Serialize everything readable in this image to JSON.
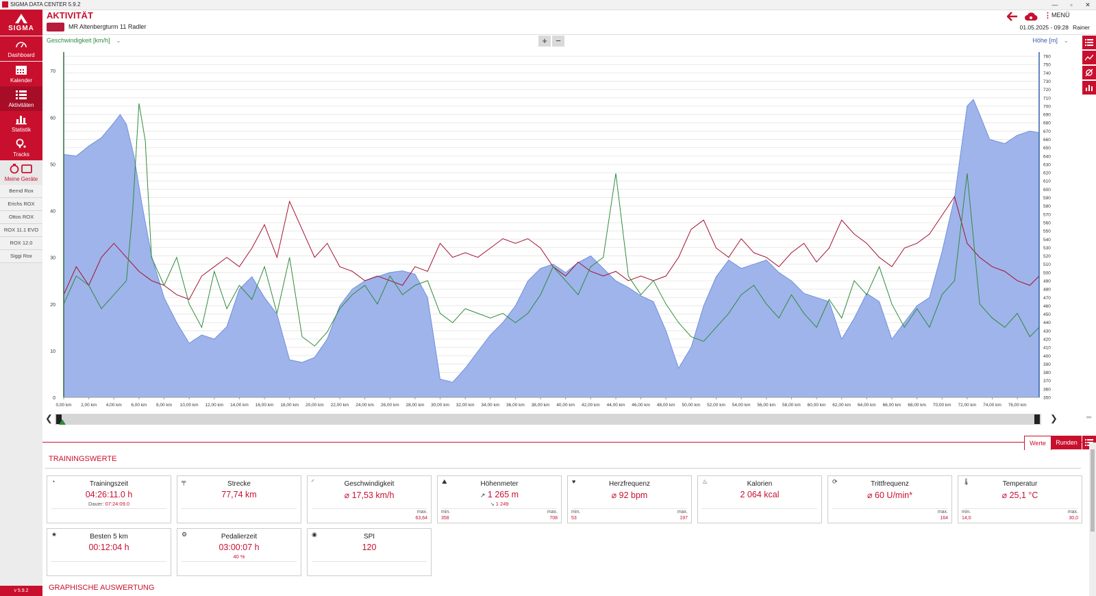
{
  "window": {
    "title": "SIGMA DATA CENTER 5.9.2"
  },
  "sidebar": {
    "logo": "SIGMA",
    "items": [
      {
        "label": "Dashboard",
        "icon": "speedometer-icon"
      },
      {
        "label": "Kalender",
        "icon": "calendar-icon"
      },
      {
        "label": "Aktivitäten",
        "icon": "list-icon"
      },
      {
        "label": "Statistik",
        "icon": "bar-chart-icon"
      },
      {
        "label": "Tracks",
        "icon": "map-pin-icon"
      },
      {
        "label": "Meine Geräte",
        "icon": "devices-icon"
      }
    ],
    "devices": [
      "Bernd Rox",
      "Erichs ROX",
      "Ottos ROX",
      "ROX 11.1 EVO",
      "ROX 12.0",
      "Siggi Rox"
    ],
    "version": "v 5.9.2"
  },
  "header": {
    "title": "AKTIVITÄT",
    "activity_name": "MR Altenbergturm 11 Radler",
    "menu_label": "MENÜ",
    "date": "01.05.2025",
    "time": "09:28",
    "user": "Rainer"
  },
  "colors": {
    "accent": "#c8102e",
    "speed": "#2e8b3a",
    "altitude_fill": "#9fb4ea",
    "heart": "#a3102e"
  },
  "chart_data": {
    "type": "line",
    "left_axis_label": "Geschwindigkeit [km/h]",
    "right_axis_label": "Höhe [m]",
    "ylim_left": [
      0,
      74
    ],
    "ylim_right": [
      350,
      765
    ],
    "xlim": [
      0,
      77.74
    ],
    "yticks_left": [
      0,
      10,
      20,
      30,
      40,
      50,
      60,
      70
    ],
    "yticks_right": [
      350,
      360,
      370,
      380,
      390,
      400,
      410,
      420,
      430,
      440,
      450,
      460,
      470,
      480,
      490,
      500,
      510,
      520,
      530,
      540,
      550,
      560,
      570,
      580,
      590,
      600,
      610,
      620,
      630,
      640,
      650,
      660,
      670,
      680,
      690,
      700,
      710,
      720,
      730,
      740,
      750,
      760
    ],
    "xtick_labels": [
      "0,00 km",
      "2,00 km",
      "4,00 km",
      "6,00 km",
      "8,00 km",
      "10,00 km",
      "12,00 km",
      "14,00 km",
      "16,00 km",
      "18,00 km",
      "20,00 km",
      "22,00 km",
      "24,00 km",
      "26,00 km",
      "28,00 km",
      "30,00 km",
      "32,00 km",
      "34,00 km",
      "36,00 km",
      "38,00 km",
      "40,00 km",
      "42,00 km",
      "44,00 km",
      "46,00 km",
      "48,00 km",
      "50,00 km",
      "52,00 km",
      "54,00 km",
      "56,00 km",
      "58,00 km",
      "60,00 km",
      "62,00 km",
      "64,00 km",
      "66,00 km",
      "68,00 km",
      "70,00 km",
      "72,00 km",
      "74,00 km",
      "76,00 km"
    ],
    "altitude": [
      [
        0,
        642
      ],
      [
        1,
        640
      ],
      [
        2,
        652
      ],
      [
        3,
        662
      ],
      [
        4,
        680
      ],
      [
        4.5,
        690
      ],
      [
        5,
        678
      ],
      [
        5.6,
        640
      ],
      [
        6.2,
        585
      ],
      [
        7,
        520
      ],
      [
        8,
        470
      ],
      [
        9,
        440
      ],
      [
        10,
        415
      ],
      [
        11,
        425
      ],
      [
        12,
        420
      ],
      [
        13,
        435
      ],
      [
        14,
        480
      ],
      [
        15,
        495
      ],
      [
        16,
        470
      ],
      [
        17,
        450
      ],
      [
        18,
        395
      ],
      [
        19,
        392
      ],
      [
        20,
        398
      ],
      [
        21,
        420
      ],
      [
        22,
        460
      ],
      [
        23,
        480
      ],
      [
        24,
        490
      ],
      [
        25,
        495
      ],
      [
        26,
        500
      ],
      [
        27,
        502
      ],
      [
        28,
        498
      ],
      [
        29,
        470
      ],
      [
        30,
        372
      ],
      [
        31,
        368
      ],
      [
        32,
        385
      ],
      [
        33,
        405
      ],
      [
        34,
        425
      ],
      [
        35,
        440
      ],
      [
        36,
        460
      ],
      [
        37,
        490
      ],
      [
        38,
        505
      ],
      [
        39,
        510
      ],
      [
        40,
        500
      ],
      [
        41,
        512
      ],
      [
        42,
        520
      ],
      [
        43,
        505
      ],
      [
        44,
        490
      ],
      [
        45,
        482
      ],
      [
        46,
        472
      ],
      [
        47,
        465
      ],
      [
        48,
        430
      ],
      [
        49,
        385
      ],
      [
        50,
        410
      ],
      [
        51,
        460
      ],
      [
        52,
        495
      ],
      [
        53,
        515
      ],
      [
        54,
        505
      ],
      [
        55,
        510
      ],
      [
        56,
        515
      ],
      [
        57,
        500
      ],
      [
        58,
        490
      ],
      [
        59,
        475
      ],
      [
        60,
        470
      ],
      [
        61,
        465
      ],
      [
        62,
        420
      ],
      [
        63,
        445
      ],
      [
        64,
        475
      ],
      [
        65,
        465
      ],
      [
        66,
        420
      ],
      [
        67,
        440
      ],
      [
        68,
        460
      ],
      [
        69,
        470
      ],
      [
        70,
        525
      ],
      [
        71,
        590
      ],
      [
        72,
        700
      ],
      [
        72.5,
        708
      ],
      [
        73,
        690
      ],
      [
        73.8,
        660
      ],
      [
        75,
        655
      ],
      [
        76,
        665
      ],
      [
        77,
        670
      ],
      [
        77.74,
        668
      ]
    ],
    "speed": [
      [
        0,
        20
      ],
      [
        1,
        26
      ],
      [
        2,
        24
      ],
      [
        3,
        19
      ],
      [
        4,
        22
      ],
      [
        5,
        25
      ],
      [
        5.5,
        40
      ],
      [
        6,
        63
      ],
      [
        6.5,
        55
      ],
      [
        7,
        30
      ],
      [
        8,
        24
      ],
      [
        9,
        30
      ],
      [
        10,
        20
      ],
      [
        11,
        15
      ],
      [
        12,
        27
      ],
      [
        13,
        19
      ],
      [
        14,
        24
      ],
      [
        15,
        21
      ],
      [
        16,
        28
      ],
      [
        17,
        18
      ],
      [
        18,
        30
      ],
      [
        19,
        13
      ],
      [
        20,
        11
      ],
      [
        21,
        14
      ],
      [
        22,
        19
      ],
      [
        23,
        22
      ],
      [
        24,
        24
      ],
      [
        25,
        20
      ],
      [
        26,
        26
      ],
      [
        27,
        22
      ],
      [
        28,
        24
      ],
      [
        29,
        25
      ],
      [
        30,
        18
      ],
      [
        31,
        16
      ],
      [
        32,
        19
      ],
      [
        33,
        18
      ],
      [
        34,
        17
      ],
      [
        35,
        18
      ],
      [
        36,
        16
      ],
      [
        37,
        18
      ],
      [
        38,
        22
      ],
      [
        39,
        28
      ],
      [
        40,
        25
      ],
      [
        41,
        22
      ],
      [
        42,
        28
      ],
      [
        43,
        30
      ],
      [
        44,
        48
      ],
      [
        45,
        26
      ],
      [
        46,
        22
      ],
      [
        47,
        25
      ],
      [
        48,
        20
      ],
      [
        49,
        16
      ],
      [
        50,
        13
      ],
      [
        51,
        12
      ],
      [
        52,
        15
      ],
      [
        53,
        18
      ],
      [
        54,
        22
      ],
      [
        55,
        24
      ],
      [
        56,
        20
      ],
      [
        57,
        17
      ],
      [
        58,
        22
      ],
      [
        59,
        18
      ],
      [
        60,
        15
      ],
      [
        61,
        21
      ],
      [
        62,
        17
      ],
      [
        63,
        25
      ],
      [
        64,
        22
      ],
      [
        65,
        28
      ],
      [
        66,
        20
      ],
      [
        67,
        15
      ],
      [
        68,
        19
      ],
      [
        69,
        15
      ],
      [
        70,
        22
      ],
      [
        71,
        25
      ],
      [
        72,
        48
      ],
      [
        73,
        20
      ],
      [
        74,
        17
      ],
      [
        75,
        15
      ],
      [
        76,
        18
      ],
      [
        77,
        13
      ],
      [
        77.74,
        15
      ]
    ],
    "heart_rate": [
      [
        0,
        22
      ],
      [
        1,
        28
      ],
      [
        2,
        24
      ],
      [
        3,
        30
      ],
      [
        4,
        33
      ],
      [
        5,
        30
      ],
      [
        6,
        27
      ],
      [
        7,
        25
      ],
      [
        8,
        24
      ],
      [
        9,
        22
      ],
      [
        10,
        21
      ],
      [
        11,
        26
      ],
      [
        12,
        28
      ],
      [
        13,
        30
      ],
      [
        14,
        28
      ],
      [
        15,
        32
      ],
      [
        16,
        37
      ],
      [
        17,
        30
      ],
      [
        18,
        42
      ],
      [
        19,
        36
      ],
      [
        20,
        30
      ],
      [
        21,
        33
      ],
      [
        22,
        28
      ],
      [
        23,
        27
      ],
      [
        24,
        25
      ],
      [
        25,
        26
      ],
      [
        26,
        25
      ],
      [
        27,
        24
      ],
      [
        28,
        28
      ],
      [
        29,
        27
      ],
      [
        30,
        33
      ],
      [
        31,
        30
      ],
      [
        32,
        31
      ],
      [
        33,
        30
      ],
      [
        34,
        32
      ],
      [
        35,
        34
      ],
      [
        36,
        33
      ],
      [
        37,
        34
      ],
      [
        38,
        32
      ],
      [
        39,
        28
      ],
      [
        40,
        26
      ],
      [
        41,
        29
      ],
      [
        42,
        27
      ],
      [
        43,
        26
      ],
      [
        44,
        27
      ],
      [
        45,
        25
      ],
      [
        46,
        26
      ],
      [
        47,
        25
      ],
      [
        48,
        26
      ],
      [
        49,
        30
      ],
      [
        50,
        36
      ],
      [
        51,
        38
      ],
      [
        52,
        32
      ],
      [
        53,
        30
      ],
      [
        54,
        34
      ],
      [
        55,
        31
      ],
      [
        56,
        30
      ],
      [
        57,
        28
      ],
      [
        58,
        31
      ],
      [
        59,
        33
      ],
      [
        60,
        29
      ],
      [
        61,
        32
      ],
      [
        62,
        38
      ],
      [
        63,
        35
      ],
      [
        64,
        33
      ],
      [
        65,
        30
      ],
      [
        66,
        28
      ],
      [
        67,
        32
      ],
      [
        68,
        33
      ],
      [
        69,
        35
      ],
      [
        70,
        39
      ],
      [
        71,
        43
      ],
      [
        72,
        33
      ],
      [
        73,
        30
      ],
      [
        74,
        28
      ],
      [
        75,
        27
      ],
      [
        76,
        25
      ],
      [
        77,
        24
      ],
      [
        77.74,
        26
      ]
    ]
  },
  "tabs": {
    "werte": "Werte",
    "runden": "Runden"
  },
  "training": {
    "title": "TRAININGSWERTE",
    "cards": [
      {
        "icon": "stopwatch-icon",
        "label": "Trainingszeit",
        "value": "04:26:11.0 h",
        "sub_key": "Dauer:",
        "sub_val": "07:24:09.0"
      },
      {
        "icon": "distance-icon",
        "label": "Strecke",
        "value": "77,74 km"
      },
      {
        "icon": "speedometer-icon",
        "label": "Geschwindigkeit",
        "value": "⌀ 17,53 km/h",
        "max_label": "max.",
        "max": "63,64"
      },
      {
        "icon": "mountain-icon",
        "label": "Höhenmeter",
        "value": "1 265 m",
        "sub_val": "1 249",
        "min_label": "min.",
        "min": "358",
        "max_label": "max.",
        "max": "708"
      },
      {
        "icon": "heart-icon",
        "label": "Herzfrequenz",
        "value": "⌀ 92 bpm",
        "min_label": "min.",
        "min": "53",
        "max_label": "max.",
        "max": "197"
      },
      {
        "icon": "flame-icon",
        "label": "Kalorien",
        "value": "2 064 kcal"
      },
      {
        "icon": "cadence-icon",
        "label": "Trittfrequenz",
        "value": "⌀ 60 U/min*",
        "max_label": "max.",
        "max": "164"
      },
      {
        "icon": "thermometer-icon",
        "label": "Temperatur",
        "value": "⌀ 25,1 °C",
        "min_label": "min.",
        "min": "14,0",
        "max_label": "max.",
        "max": "30,0"
      },
      {
        "icon": "star-icon",
        "label": "Besten 5 km",
        "value": "00:12:04 h"
      },
      {
        "icon": "pedal-icon",
        "label": "Pedalierzeit",
        "value": "03:00:07 h",
        "sub_val": "40 %"
      },
      {
        "icon": "spi-icon",
        "label": "SPI",
        "value": "120"
      }
    ]
  },
  "graphic": {
    "title": "GRAPHISCHE AUSWERTUNG"
  }
}
